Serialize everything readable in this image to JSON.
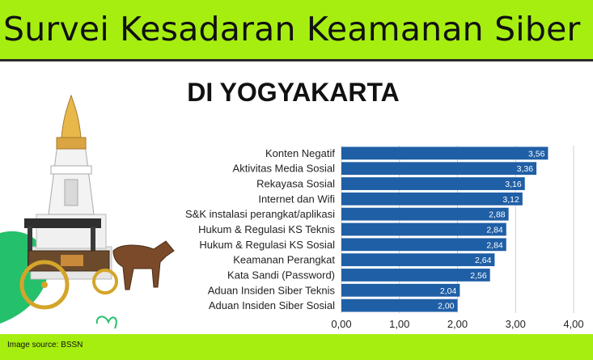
{
  "header": {
    "title": "Survei Kesadaran Keamanan Siber",
    "subtitle": "DI YOGYAKARTA"
  },
  "footer": {
    "source": "Image source: BSSN"
  },
  "colors": {
    "banner": "#a6ee10",
    "bar": "#1f5fa6",
    "grid": "#cfcfcf"
  },
  "illustration": {
    "name": "tugu-yogyakarta-andong-horse-carriage"
  },
  "chart_data": {
    "type": "bar",
    "orientation": "horizontal",
    "categories": [
      "Konten Negatif",
      "Aktivitas Media Sosial",
      "Rekayasa Sosial",
      "Internet dan Wifi",
      "S&K instalasi perangkat/aplikasi",
      "Hukum & Regulasi KS Teknis",
      "Hukum & Regulasi KS Sosial",
      "Keamanan Perangkat",
      "Kata Sandi (Password)",
      "Aduan Insiden Siber Teknis",
      "Aduan Insiden Siber Sosial"
    ],
    "values": [
      3.56,
      3.36,
      3.16,
      3.12,
      2.88,
      2.84,
      2.84,
      2.64,
      2.56,
      2.04,
      2.0
    ],
    "value_labels": [
      "3,56",
      "3,36",
      "3,16",
      "3,12",
      "2,88",
      "2,84",
      "2,84",
      "2,64",
      "2,56",
      "2,04",
      "2,00"
    ],
    "xlim": [
      0,
      4
    ],
    "xticks": [
      0,
      1,
      2,
      3,
      4
    ],
    "xtick_labels": [
      "0,00",
      "1,00",
      "2,00",
      "3,00",
      "4,00"
    ],
    "grid": true
  }
}
